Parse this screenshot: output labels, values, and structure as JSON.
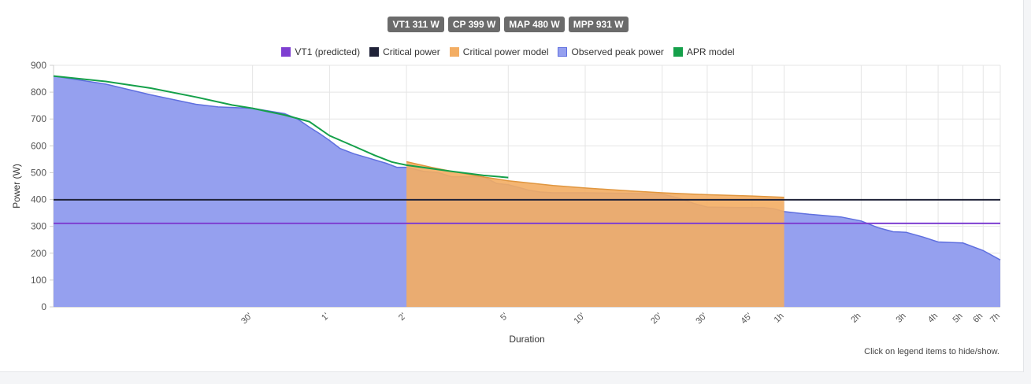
{
  "badges": [
    "VT1 311 W",
    "CP 399 W",
    "MAP 480 W",
    "MPP 931 W"
  ],
  "legend": [
    {
      "label": "VT1 (predicted)",
      "fill": "#7e3fd1",
      "border": "#7e3fd1"
    },
    {
      "label": "Critical power",
      "fill": "#1f2238",
      "border": "#1f2238"
    },
    {
      "label": "Critical power model",
      "fill": "#f3ad63",
      "border": "#f3ad63"
    },
    {
      "label": "Observed peak power",
      "fill": "#95a0ef",
      "border": "#5f6fdf"
    },
    {
      "label": "APR model",
      "fill": "#15a04a",
      "border": "#15a04a"
    }
  ],
  "hint": "Click on legend items to hide/show.",
  "chart_data": {
    "type": "area",
    "xlabel": "Duration",
    "ylabel": "Power (W)",
    "x_scale": "log",
    "x_unit": "seconds",
    "xlim": [
      5,
      25200
    ],
    "ylim": [
      0,
      900
    ],
    "y_ticks": [
      0,
      100,
      200,
      300,
      400,
      500,
      600,
      700,
      800,
      900
    ],
    "x_ticks": [
      {
        "label": "30'",
        "value": 30
      },
      {
        "label": "1'",
        "value": 60
      },
      {
        "label": "2'",
        "value": 120
      },
      {
        "label": "5'",
        "value": 300
      },
      {
        "label": "10'",
        "value": 600
      },
      {
        "label": "20'",
        "value": 1200
      },
      {
        "label": "30'",
        "value": 1800
      },
      {
        "label": "45'",
        "value": 2700
      },
      {
        "label": "1h",
        "value": 3600
      },
      {
        "label": "2h",
        "value": 7200
      },
      {
        "label": "3h",
        "value": 10800
      },
      {
        "label": "4h",
        "value": 14400
      },
      {
        "label": "5h",
        "value": 18000
      },
      {
        "label": "6h",
        "value": 21600
      },
      {
        "label": "7h",
        "value": 25200
      }
    ],
    "grid": true,
    "legend_position": "top",
    "series": [
      {
        "name": "Observed peak power",
        "kind": "area",
        "color": "#5f6fdf",
        "fill": "#95a0ef",
        "points": [
          [
            5,
            860
          ],
          [
            8,
            830
          ],
          [
            12,
            790
          ],
          [
            18,
            755
          ],
          [
            22,
            745
          ],
          [
            30,
            740
          ],
          [
            40,
            720
          ],
          [
            45,
            700
          ],
          [
            50,
            670
          ],
          [
            55,
            645
          ],
          [
            60,
            620
          ],
          [
            66,
            590
          ],
          [
            75,
            570
          ],
          [
            85,
            555
          ],
          [
            100,
            535
          ],
          [
            110,
            520
          ],
          [
            120,
            520
          ],
          [
            140,
            505
          ],
          [
            160,
            500
          ],
          [
            180,
            485
          ],
          [
            200,
            485
          ],
          [
            240,
            485
          ],
          [
            270,
            460
          ],
          [
            300,
            455
          ],
          [
            330,
            445
          ],
          [
            360,
            435
          ],
          [
            400,
            428
          ],
          [
            450,
            425
          ],
          [
            600,
            425
          ],
          [
            900,
            423
          ],
          [
            1200,
            420
          ],
          [
            1400,
            405
          ],
          [
            1600,
            385
          ],
          [
            1800,
            372
          ],
          [
            2400,
            370
          ],
          [
            3000,
            370
          ],
          [
            3300,
            365
          ],
          [
            3600,
            355
          ],
          [
            4500,
            345
          ],
          [
            6000,
            335
          ],
          [
            7200,
            320
          ],
          [
            8400,
            295
          ],
          [
            9600,
            280
          ],
          [
            10800,
            278
          ],
          [
            12600,
            260
          ],
          [
            14400,
            242
          ],
          [
            18000,
            238
          ],
          [
            21600,
            210
          ],
          [
            25200,
            175
          ]
        ]
      },
      {
        "name": "Critical power model",
        "kind": "area",
        "color": "#e0963f",
        "fill": "#f3ad63",
        "points": [
          [
            120,
            541
          ],
          [
            150,
            520
          ],
          [
            180,
            505
          ],
          [
            240,
            484
          ],
          [
            300,
            470
          ],
          [
            450,
            452
          ],
          [
            600,
            443
          ],
          [
            900,
            432
          ],
          [
            1200,
            425
          ],
          [
            1800,
            418
          ],
          [
            2700,
            413
          ],
          [
            3600,
            408
          ]
        ]
      },
      {
        "name": "APR model",
        "kind": "line",
        "color": "#15a04a",
        "points": [
          [
            5,
            860
          ],
          [
            8,
            840
          ],
          [
            12,
            815
          ],
          [
            18,
            782
          ],
          [
            25,
            752
          ],
          [
            30,
            740
          ],
          [
            40,
            715
          ],
          [
            50,
            690
          ],
          [
            60,
            638
          ],
          [
            75,
            598
          ],
          [
            90,
            565
          ],
          [
            105,
            540
          ],
          [
            120,
            528
          ],
          [
            180,
            505
          ],
          [
            240,
            490
          ],
          [
            300,
            482
          ]
        ]
      },
      {
        "name": "Critical power",
        "kind": "line",
        "color": "#1f2238",
        "points": [
          [
            5,
            399
          ],
          [
            25200,
            399
          ]
        ]
      },
      {
        "name": "VT1 (predicted)",
        "kind": "line",
        "color": "#7e3fd1",
        "points": [
          [
            5,
            311
          ],
          [
            25200,
            311
          ]
        ]
      }
    ]
  }
}
